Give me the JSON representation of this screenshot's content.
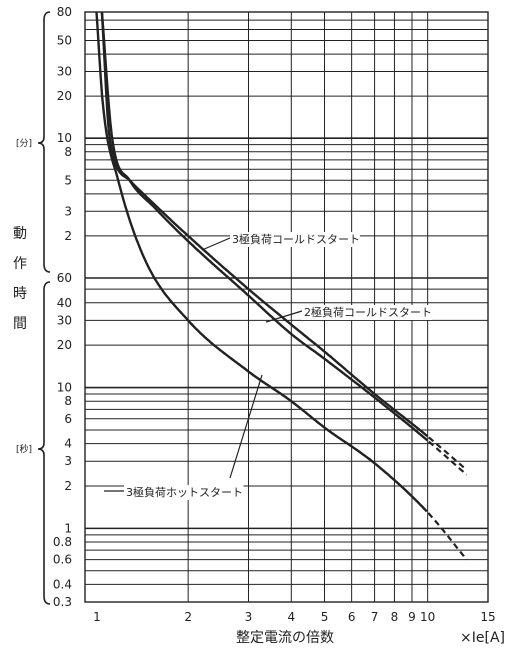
{
  "chart_data": {
    "type": "line",
    "xscale": "log",
    "xlim": [
      1,
      15
    ],
    "x_ticks": [
      "1",
      "2",
      "3",
      "4",
      "5",
      "6",
      "7",
      "8",
      "9",
      "10",
      "15"
    ],
    "xlabel": "整定電流の倍数",
    "xunit": "×Ie[A]",
    "ylabel": "動作時間",
    "y_sections": [
      {
        "unit": "[分]",
        "range": [
          1,
          80
        ],
        "ticks": [
          "80",
          "50",
          "30",
          "20",
          "10",
          "8",
          "5",
          "3",
          "2"
        ]
      },
      {
        "unit": "[秒]",
        "range": [
          0.3,
          60
        ],
        "ticks": [
          "60",
          "40",
          "30",
          "20",
          "10",
          "8",
          "6",
          "4",
          "3",
          "2",
          "1",
          "0.8",
          "0.6",
          "0.4",
          "0.3"
        ]
      }
    ],
    "grid": true,
    "series": [
      {
        "name": "3極負荷コールドスタート",
        "x": [
          1.12,
          1.18,
          1.35,
          1.6,
          2.0,
          3.0,
          4.0,
          5.0,
          7.0,
          10.0,
          13.0
        ],
        "y_seconds": [
          4800,
          600,
          300,
          200,
          120,
          50,
          28,
          18,
          9,
          4.5,
          2.6
        ]
      },
      {
        "name": "2極負荷コールドスタート",
        "x": [
          1.12,
          1.2,
          1.35,
          1.6,
          2.0,
          3.0,
          4.0,
          5.0,
          7.0,
          10.0,
          13.0
        ],
        "y_seconds": [
          4800,
          600,
          300,
          190,
          110,
          45,
          24,
          16,
          8.5,
          4.2,
          2.4
        ]
      },
      {
        "name": "3極負荷ホットスタート",
        "x": [
          1.08,
          1.13,
          1.25,
          1.5,
          2.0,
          3.0,
          4.0,
          5.0,
          7.0,
          10.0,
          13.0
        ],
        "y_seconds": [
          4800,
          1000,
          300,
          80,
          30,
          13,
          8,
          5.2,
          2.9,
          1.3,
          0.6
        ]
      }
    ],
    "dashed_from_x": 10
  },
  "icons": {
    "brace": "curly-brace"
  }
}
